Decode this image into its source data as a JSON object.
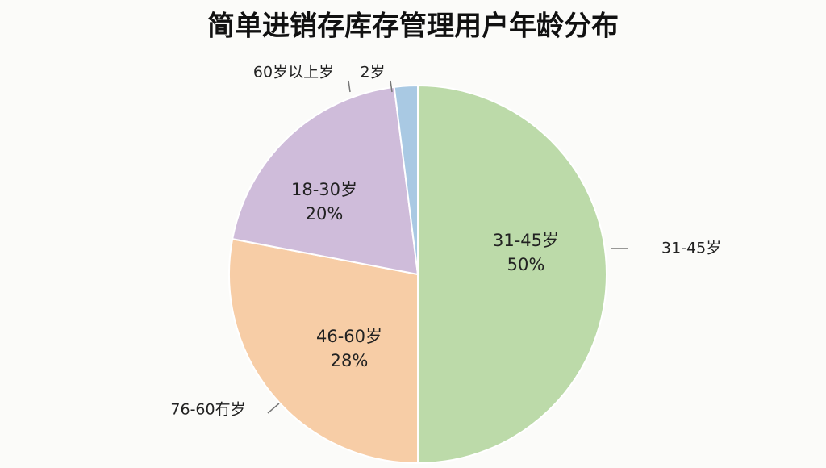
{
  "chart_data": {
    "type": "pie",
    "title": "简单进销存库存管理用户年龄分布",
    "categories": [
      "31-45岁",
      "46-60岁",
      "18-30岁",
      "60岁以上岁"
    ],
    "values": [
      50,
      28,
      20,
      2
    ],
    "value_labels": [
      "50%",
      "28%",
      "20%",
      "2岁"
    ],
    "colors": [
      "#bcdaa9",
      "#f7cda6",
      "#cfbcda",
      "#a9c9e3"
    ],
    "annotation": "76-60冇岁"
  }
}
